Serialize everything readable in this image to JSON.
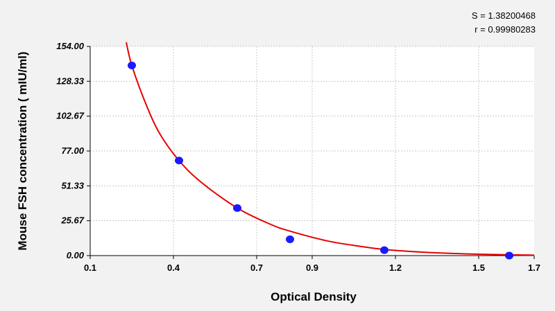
{
  "chart_data": {
    "type": "scatter",
    "xlabel": "Optical Density",
    "ylabel": "Mouse FSH concentration ( mIU/ml)",
    "xlim": [
      0.1,
      1.7
    ],
    "ylim": [
      0,
      154
    ],
    "x_ticks": [
      0.1,
      0.4,
      0.7,
      0.9,
      1.2,
      1.5,
      1.7
    ],
    "x_tick_labels": [
      "0.1",
      "0.4",
      "0.7",
      "0.9",
      "1.2",
      "1.5",
      "1.7"
    ],
    "y_ticks": [
      0,
      25.67,
      51.33,
      77,
      102.67,
      128.33,
      154
    ],
    "y_tick_labels": [
      "0.00",
      "25.67",
      "51.33",
      "77.00",
      "102.67",
      "128.33",
      "154.00"
    ],
    "grid": true,
    "points": {
      "x": [
        0.25,
        0.42,
        0.63,
        0.82,
        1.16,
        1.61
      ],
      "y": [
        140,
        70,
        35,
        12,
        4,
        0
      ]
    },
    "fit_curve": {
      "x": [
        0.23,
        0.25,
        0.3,
        0.35,
        0.42,
        0.5,
        0.63,
        0.75,
        0.82,
        0.95,
        1.05,
        1.16,
        1.3,
        1.45,
        1.61,
        1.7
      ],
      "y": [
        157,
        140,
        112,
        90,
        70,
        54,
        35,
        23,
        18,
        11,
        7.5,
        4.5,
        2.5,
        1.3,
        0.6,
        0.3
      ]
    },
    "marker_color": "#1a1aff",
    "curve_color": "#e60000",
    "stats": {
      "s": "S = 1.38200468",
      "r": "r = 0.99980283"
    }
  }
}
